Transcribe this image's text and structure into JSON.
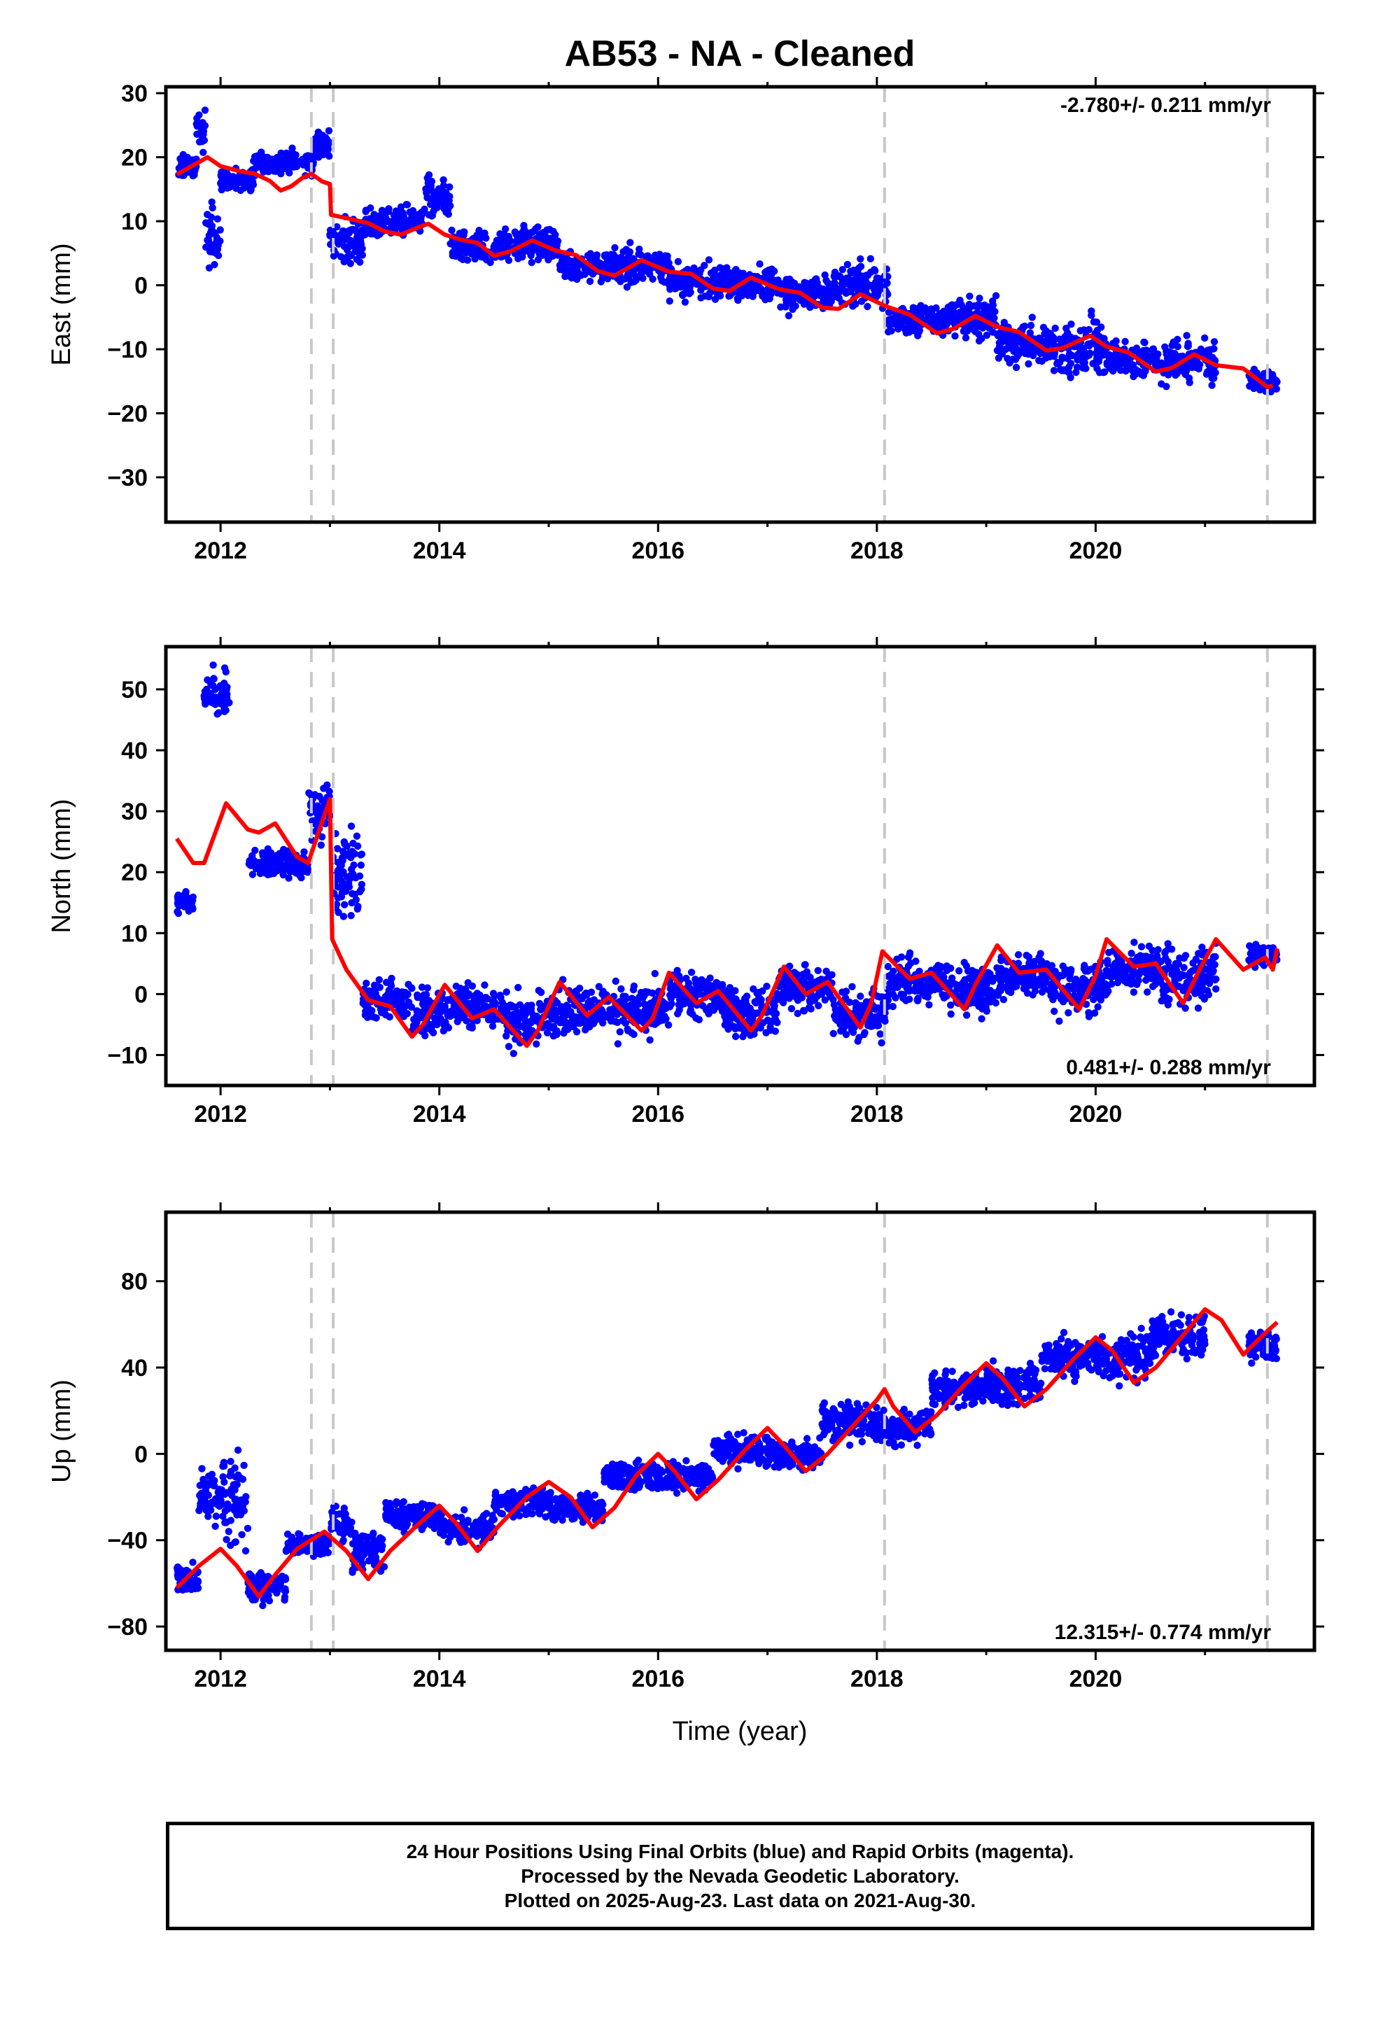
{
  "title": "AB53  - NA - Cleaned",
  "xlabel": "Time (year)",
  "colors": {
    "data": "#0000ff",
    "model": "#ff0000",
    "breaks": "#c8c8c8",
    "frame": "#000000"
  },
  "footer": {
    "line1": "24 Hour Positions Using Final Orbits (blue) and Rapid Orbits (magenta).",
    "line2": "Processed by the Nevada Geodetic Laboratory.",
    "line3": "Plotted on 2025-Aug-23. Last data on 2021-Aug-30."
  },
  "chart_data": [
    {
      "type": "scatter",
      "ylabel": "East (mm)",
      "rate_label": "-2.780+/- 0.211 mm/yr",
      "rate_position": "top-right",
      "xlim": [
        2011.5,
        2022.0
      ],
      "ylim": [
        -37,
        31
      ],
      "xticks": [
        "2012",
        "2014",
        "2016",
        "2018",
        "2020"
      ],
      "yticks": [
        "−30",
        "−20",
        "−10",
        "0",
        "10",
        "20",
        "30"
      ],
      "ytick_values": [
        -30,
        -20,
        -10,
        0,
        10,
        20,
        30
      ],
      "breaks": [
        2012.83,
        2013.03,
        2018.07,
        2021.57
      ],
      "data_range": [
        2011.6,
        2021.66
      ],
      "model": [
        [
          2011.6,
          17.3
        ],
        [
          2011.8,
          19.2
        ],
        [
          2011.88,
          20.0
        ],
        [
          2012.0,
          18.6
        ],
        [
          2012.2,
          17.7
        ],
        [
          2012.3,
          17.5
        ],
        [
          2012.45,
          16.3
        ],
        [
          2012.55,
          14.8
        ],
        [
          2012.65,
          15.5
        ],
        [
          2012.75,
          16.8
        ],
        [
          2012.83,
          17.4
        ],
        [
          2012.93,
          16.2
        ],
        [
          2013.0,
          15.8
        ],
        [
          2013.01,
          11.0
        ],
        [
          2013.2,
          10.3
        ],
        [
          2013.35,
          9.7
        ],
        [
          2013.5,
          8.4
        ],
        [
          2013.65,
          7.9
        ],
        [
          2013.8,
          9.0
        ],
        [
          2013.9,
          9.6
        ],
        [
          2014.05,
          7.9
        ],
        [
          2014.2,
          7.1
        ],
        [
          2014.35,
          6.6
        ],
        [
          2014.5,
          4.6
        ],
        [
          2014.65,
          5.3
        ],
        [
          2014.85,
          7.0
        ],
        [
          2015.05,
          5.5
        ],
        [
          2015.25,
          4.7
        ],
        [
          2015.45,
          2.2
        ],
        [
          2015.6,
          1.5
        ],
        [
          2015.85,
          3.9
        ],
        [
          2016.1,
          2.1
        ],
        [
          2016.3,
          1.8
        ],
        [
          2016.5,
          -0.5
        ],
        [
          2016.65,
          -0.9
        ],
        [
          2016.85,
          1.2
        ],
        [
          2017.1,
          -0.6
        ],
        [
          2017.3,
          -1.2
        ],
        [
          2017.5,
          -3.5
        ],
        [
          2017.65,
          -3.7
        ],
        [
          2017.85,
          -1.4
        ],
        [
          2018.07,
          -3.2
        ],
        [
          2018.3,
          -4.6
        ],
        [
          2018.55,
          -7.5
        ],
        [
          2018.7,
          -6.8
        ],
        [
          2018.9,
          -4.8
        ],
        [
          2019.1,
          -6.5
        ],
        [
          2019.3,
          -7.3
        ],
        [
          2019.55,
          -10.2
        ],
        [
          2019.7,
          -9.8
        ],
        [
          2019.95,
          -7.9
        ],
        [
          2020.1,
          -9.6
        ],
        [
          2020.3,
          -10.5
        ],
        [
          2020.55,
          -13.5
        ],
        [
          2020.7,
          -12.9
        ],
        [
          2020.9,
          -10.8
        ],
        [
          2021.1,
          -12.5
        ],
        [
          2021.35,
          -13.0
        ],
        [
          2021.57,
          -15.9
        ],
        [
          2021.62,
          -15.7
        ]
      ],
      "cloud": [
        [
          2011.6,
          2011.78,
          18.5,
          2.0
        ],
        [
          2011.78,
          2011.86,
          24.0,
          3.5
        ],
        [
          2011.86,
          2012.0,
          8.0,
          5.5
        ],
        [
          2012.0,
          2012.3,
          16.5,
          1.8
        ],
        [
          2012.3,
          2012.55,
          19.0,
          2.0
        ],
        [
          2012.55,
          2012.85,
          19.2,
          2.0
        ],
        [
          2012.85,
          2013.0,
          22.0,
          2.8
        ],
        [
          2013.0,
          2013.3,
          7.0,
          4.0
        ],
        [
          2013.3,
          2013.6,
          9.5,
          2.5
        ],
        [
          2013.6,
          2013.85,
          10.0,
          2.5
        ],
        [
          2013.85,
          2014.1,
          14.0,
          4.0
        ],
        [
          2014.1,
          2014.6,
          6.0,
          2.5
        ],
        [
          2014.6,
          2015.1,
          6.5,
          3.0
        ],
        [
          2015.1,
          2015.6,
          3.0,
          2.8
        ],
        [
          2015.6,
          2016.1,
          3.0,
          3.0
        ],
        [
          2016.1,
          2016.6,
          0.5,
          3.0
        ],
        [
          2016.6,
          2017.1,
          0.5,
          2.8
        ],
        [
          2017.1,
          2017.6,
          -1.5,
          3.0
        ],
        [
          2017.6,
          2018.1,
          0.0,
          3.5
        ],
        [
          2018.1,
          2018.6,
          -5.5,
          2.8
        ],
        [
          2018.6,
          2019.1,
          -5.0,
          3.5
        ],
        [
          2019.1,
          2019.6,
          -9.0,
          3.5
        ],
        [
          2019.6,
          2020.1,
          -10.0,
          5.0
        ],
        [
          2020.1,
          2020.6,
          -11.5,
          3.0
        ],
        [
          2020.6,
          2021.1,
          -12.0,
          4.0
        ],
        [
          2021.4,
          2021.66,
          -15.0,
          1.8
        ]
      ]
    },
    {
      "type": "scatter",
      "ylabel": "North (mm)",
      "rate_label": "0.481+/- 0.288 mm/yr",
      "rate_position": "bottom-right",
      "xlim": [
        2011.5,
        2022.0
      ],
      "ylim": [
        -15,
        57
      ],
      "xticks": [
        "2012",
        "2014",
        "2016",
        "2018",
        "2020"
      ],
      "yticks": [
        "−10",
        "0",
        "10",
        "20",
        "30",
        "40",
        "50"
      ],
      "ytick_values": [
        -10,
        0,
        10,
        20,
        30,
        40,
        50
      ],
      "breaks": [
        2012.83,
        2013.03,
        2018.07,
        2021.57
      ],
      "data_range": [
        2011.6,
        2021.66
      ],
      "model": [
        [
          2011.6,
          25.5
        ],
        [
          2011.75,
          21.5
        ],
        [
          2011.85,
          21.5
        ],
        [
          2012.05,
          31.3
        ],
        [
          2012.25,
          27.0
        ],
        [
          2012.35,
          26.5
        ],
        [
          2012.5,
          28.0
        ],
        [
          2012.7,
          22.5
        ],
        [
          2012.8,
          21.5
        ],
        [
          2013.0,
          32.0
        ],
        [
          2013.02,
          9.0
        ],
        [
          2013.15,
          4.0
        ],
        [
          2013.35,
          -1.0
        ],
        [
          2013.55,
          -2.0
        ],
        [
          2013.75,
          -7.0
        ],
        [
          2013.85,
          -5.0
        ],
        [
          2014.05,
          1.5
        ],
        [
          2014.3,
          -4.0
        ],
        [
          2014.5,
          -2.5
        ],
        [
          2014.8,
          -8.5
        ],
        [
          2014.9,
          -6.0
        ],
        [
          2015.1,
          2.0
        ],
        [
          2015.35,
          -3.5
        ],
        [
          2015.55,
          -0.5
        ],
        [
          2015.85,
          -6.0
        ],
        [
          2015.95,
          -4.0
        ],
        [
          2016.1,
          3.5
        ],
        [
          2016.35,
          -1.5
        ],
        [
          2016.55,
          0.5
        ],
        [
          2016.85,
          -6.0
        ],
        [
          2016.95,
          -3.5
        ],
        [
          2017.15,
          4.5
        ],
        [
          2017.35,
          0.0
        ],
        [
          2017.55,
          2.0
        ],
        [
          2017.85,
          -5.5
        ],
        [
          2017.95,
          -1.5
        ],
        [
          2018.05,
          7.0
        ],
        [
          2018.3,
          2.5
        ],
        [
          2018.5,
          3.5
        ],
        [
          2018.8,
          -2.5
        ],
        [
          2018.9,
          1.5
        ],
        [
          2019.1,
          8.0
        ],
        [
          2019.3,
          3.5
        ],
        [
          2019.55,
          4.0
        ],
        [
          2019.85,
          -2.5
        ],
        [
          2020.0,
          3.0
        ],
        [
          2020.1,
          9.0
        ],
        [
          2020.35,
          4.5
        ],
        [
          2020.55,
          5.0
        ],
        [
          2020.8,
          -1.5
        ],
        [
          2020.95,
          4.0
        ],
        [
          2021.1,
          9.0
        ],
        [
          2021.35,
          4.0
        ],
        [
          2021.55,
          6.0
        ],
        [
          2021.62,
          4.0
        ],
        [
          2021.66,
          7.5
        ]
      ],
      "cloud": [
        [
          2011.6,
          2011.75,
          15.0,
          2.0
        ],
        [
          2011.85,
          2012.08,
          49.0,
          4.0
        ],
        [
          2012.25,
          2012.8,
          21.5,
          2.5
        ],
        [
          2012.8,
          2013.0,
          30.0,
          5.0
        ],
        [
          2013.0,
          2013.3,
          20.0,
          8.0
        ],
        [
          2013.3,
          2013.75,
          -1.0,
          4.0
        ],
        [
          2013.75,
          2014.1,
          -3.0,
          4.0
        ],
        [
          2014.1,
          2014.6,
          -2.0,
          4.0
        ],
        [
          2014.6,
          2015.1,
          -4.0,
          5.0
        ],
        [
          2015.1,
          2015.6,
          -2.5,
          4.0
        ],
        [
          2015.6,
          2016.1,
          -3.0,
          5.0
        ],
        [
          2016.1,
          2016.6,
          0.0,
          4.0
        ],
        [
          2016.6,
          2017.1,
          -3.0,
          5.0
        ],
        [
          2017.1,
          2017.6,
          1.0,
          4.0
        ],
        [
          2017.6,
          2018.1,
          -3.0,
          5.0
        ],
        [
          2018.1,
          2018.6,
          2.0,
          4.0
        ],
        [
          2018.6,
          2019.1,
          1.0,
          5.0
        ],
        [
          2019.1,
          2019.6,
          3.0,
          4.0
        ],
        [
          2019.6,
          2020.1,
          1.0,
          5.0
        ],
        [
          2020.1,
          2020.6,
          4.0,
          4.0
        ],
        [
          2020.6,
          2021.1,
          3.0,
          6.0
        ],
        [
          2021.4,
          2021.66,
          6.5,
          2.0
        ]
      ]
    },
    {
      "type": "scatter",
      "ylabel": "Up (mm)",
      "rate_label": "12.315+/- 0.774 mm/yr",
      "rate_position": "bottom-right",
      "xlim": [
        2011.5,
        2022.0
      ],
      "ylim": [
        -91,
        112
      ],
      "xticks": [
        "2012",
        "2014",
        "2016",
        "2018",
        "2020"
      ],
      "yticks": [
        "−80",
        "−40",
        "0",
        "40",
        "80"
      ],
      "ytick_values": [
        -80,
        -40,
        0,
        40,
        80
      ],
      "breaks": [
        2012.83,
        2013.03,
        2018.07,
        2021.57
      ],
      "data_range": [
        2011.6,
        2021.66
      ],
      "model": [
        [
          2011.6,
          -62
        ],
        [
          2011.8,
          -52
        ],
        [
          2012.0,
          -44
        ],
        [
          2012.15,
          -52
        ],
        [
          2012.35,
          -66
        ],
        [
          2012.5,
          -56
        ],
        [
          2012.7,
          -44
        ],
        [
          2012.95,
          -36
        ],
        [
          2013.15,
          -45
        ],
        [
          2013.35,
          -58
        ],
        [
          2013.55,
          -45
        ],
        [
          2013.8,
          -33
        ],
        [
          2014.0,
          -24
        ],
        [
          2014.15,
          -32
        ],
        [
          2014.35,
          -45
        ],
        [
          2014.55,
          -33
        ],
        [
          2014.8,
          -20
        ],
        [
          2015.0,
          -13
        ],
        [
          2015.2,
          -20
        ],
        [
          2015.4,
          -34
        ],
        [
          2015.6,
          -25
        ],
        [
          2015.8,
          -10
        ],
        [
          2016.0,
          0
        ],
        [
          2016.15,
          -8
        ],
        [
          2016.35,
          -21
        ],
        [
          2016.55,
          -12
        ],
        [
          2016.8,
          2
        ],
        [
          2017.0,
          12
        ],
        [
          2017.15,
          4
        ],
        [
          2017.35,
          -8
        ],
        [
          2017.55,
          0
        ],
        [
          2017.8,
          14
        ],
        [
          2018.0,
          25
        ],
        [
          2018.07,
          30
        ],
        [
          2018.15,
          22
        ],
        [
          2018.35,
          10
        ],
        [
          2018.55,
          18
        ],
        [
          2018.8,
          32
        ],
        [
          2019.0,
          42
        ],
        [
          2019.15,
          35
        ],
        [
          2019.35,
          22
        ],
        [
          2019.55,
          30
        ],
        [
          2019.8,
          44
        ],
        [
          2020.0,
          54
        ],
        [
          2020.15,
          48
        ],
        [
          2020.35,
          33
        ],
        [
          2020.55,
          40
        ],
        [
          2020.8,
          55
        ],
        [
          2021.0,
          67
        ],
        [
          2021.15,
          62
        ],
        [
          2021.35,
          46
        ],
        [
          2021.55,
          56
        ],
        [
          2021.66,
          61
        ]
      ],
      "cloud": [
        [
          2011.6,
          2011.8,
          -58,
          8
        ],
        [
          2011.8,
          2012.0,
          -20,
          14
        ],
        [
          2012.0,
          2012.25,
          -20,
          25
        ],
        [
          2012.25,
          2012.6,
          -62,
          8
        ],
        [
          2012.6,
          2013.0,
          -42,
          6
        ],
        [
          2013.0,
          2013.2,
          -32,
          8
        ],
        [
          2013.2,
          2013.5,
          -45,
          10
        ],
        [
          2013.5,
          2014.0,
          -28,
          7
        ],
        [
          2014.0,
          2014.5,
          -35,
          8
        ],
        [
          2014.5,
          2015.0,
          -22,
          8
        ],
        [
          2015.0,
          2015.5,
          -25,
          8
        ],
        [
          2015.5,
          2016.0,
          -10,
          8
        ],
        [
          2016.0,
          2016.5,
          -10,
          8
        ],
        [
          2016.5,
          2017.0,
          2,
          8
        ],
        [
          2017.0,
          2017.5,
          0,
          8
        ],
        [
          2017.5,
          2018.0,
          15,
          10
        ],
        [
          2018.0,
          2018.5,
          12,
          9
        ],
        [
          2018.5,
          2019.0,
          30,
          9
        ],
        [
          2019.0,
          2019.5,
          32,
          10
        ],
        [
          2019.5,
          2020.0,
          45,
          10
        ],
        [
          2020.0,
          2020.5,
          45,
          14
        ],
        [
          2020.5,
          2021.0,
          55,
          12
        ],
        [
          2021.4,
          2021.66,
          50,
          8
        ]
      ]
    }
  ]
}
